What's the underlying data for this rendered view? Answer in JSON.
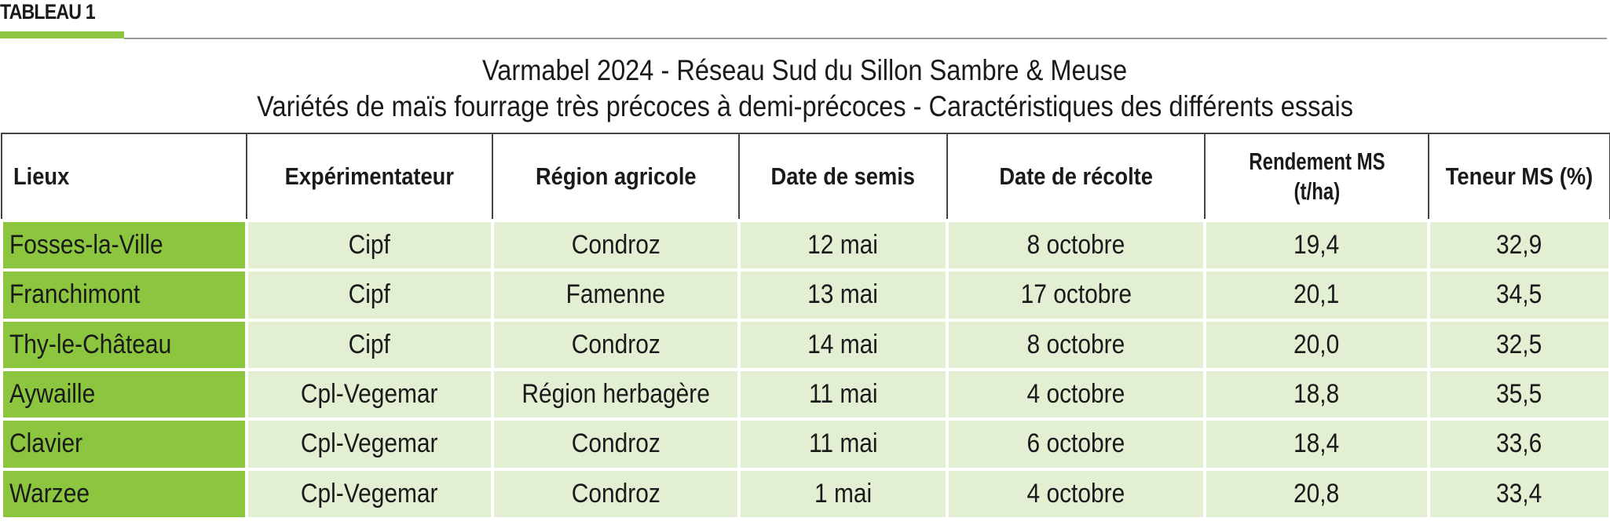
{
  "tag": "TABLEAU 1",
  "title_line1": "Varmabel 2024 - Réseau Sud du Sillon Sambre & Meuse",
  "title_line2": "Variétés de maïs fourrage très précoces à demi-précoces - Caractéristiques des différents essais",
  "colors": {
    "accent_green": "#8cc63f",
    "cell_green": "#e3efd3"
  },
  "headers": {
    "lieux": "Lieux",
    "experimentateur": "Expérimentateur",
    "region": "Région agricole",
    "semis": "Date de semis",
    "recolte": "Date de récolte",
    "rendement_line1": "Rendement MS",
    "rendement_line2": "(t/ha)",
    "teneur": "Teneur MS (%)"
  },
  "rows": [
    {
      "lieu": "Fosses-la-Ville",
      "experimentateur": "Cipf",
      "region": "Condroz",
      "semis": "12 mai",
      "recolte": "8 octobre",
      "rendement": "19,4",
      "teneur": "32,9"
    },
    {
      "lieu": "Franchimont",
      "experimentateur": "Cipf",
      "region": "Famenne",
      "semis": "13 mai",
      "recolte": "17 octobre",
      "rendement": "20,1",
      "teneur": "34,5"
    },
    {
      "lieu": "Thy-le-Château",
      "experimentateur": "Cipf",
      "region": "Condroz",
      "semis": "14 mai",
      "recolte": "8 octobre",
      "rendement": "20,0",
      "teneur": "32,5"
    },
    {
      "lieu": "Aywaille",
      "experimentateur": "Cpl-Vegemar",
      "region": "Région herbagère",
      "semis": "11 mai",
      "recolte": "4 octobre",
      "rendement": "18,8",
      "teneur": "35,5"
    },
    {
      "lieu": "Clavier",
      "experimentateur": "Cpl-Vegemar",
      "region": "Condroz",
      "semis": "11 mai",
      "recolte": "6 octobre",
      "rendement": "18,4",
      "teneur": "33,6"
    },
    {
      "lieu": "Warzee",
      "experimentateur": "Cpl-Vegemar",
      "region": "Condroz",
      "semis": "1 mai",
      "recolte": "4 octobre",
      "rendement": "20,8",
      "teneur": "33,4"
    }
  ]
}
